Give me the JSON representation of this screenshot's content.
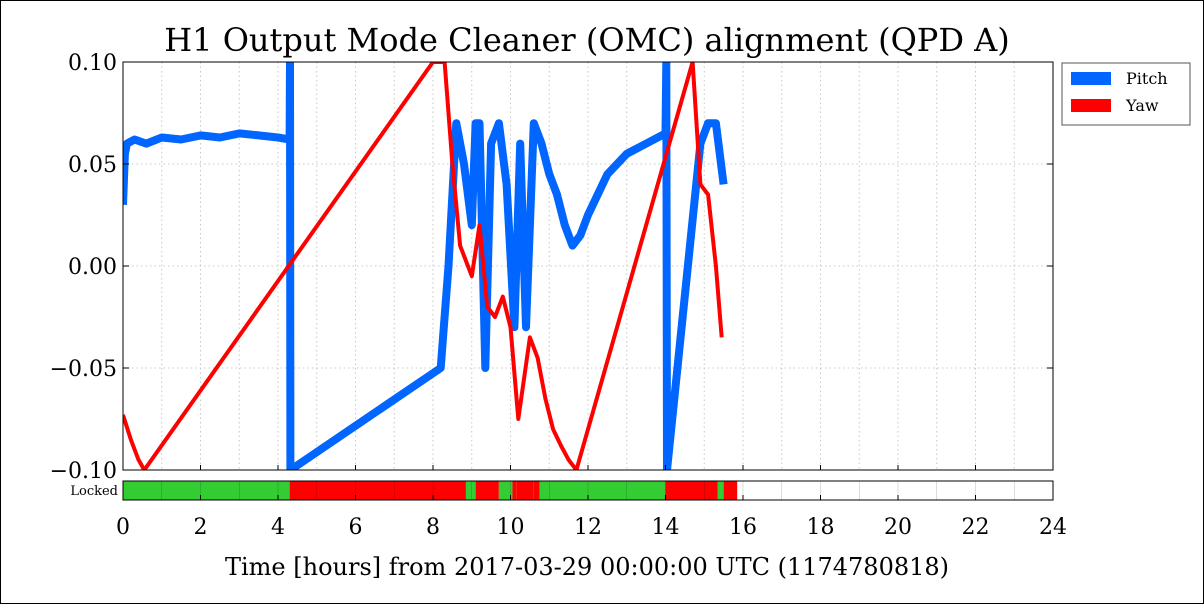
{
  "chart_data": {
    "type": "line",
    "title": "H1 Output Mode Cleaner (OMC) alignment (QPD A)",
    "xlabel": "Time [hours] from 2017-03-29 00:00:00 UTC (1174780818)",
    "ylabel": "",
    "xlim": [
      0,
      24
    ],
    "ylim": [
      -0.1,
      0.1
    ],
    "x_ticks": [
      "0",
      "2",
      "4",
      "6",
      "8",
      "10",
      "12",
      "14",
      "16",
      "18",
      "20",
      "22",
      "24"
    ],
    "y_ticks": [
      "−0.10",
      "−0.05",
      "0.00",
      "0.05",
      "0.10"
    ],
    "y_tick_values": [
      -0.1,
      -0.05,
      0.0,
      0.05,
      0.1
    ],
    "grid": true,
    "legend_position": "outside-right",
    "series": [
      {
        "name": "Pitch",
        "color": "#0066ff",
        "x": [
          0.0,
          0.05,
          0.1,
          0.3,
          0.6,
          1.0,
          1.5,
          2.0,
          2.5,
          3.0,
          3.5,
          4.0,
          4.3,
          4.31,
          4.32,
          8.2,
          8.4,
          8.6,
          8.8,
          9.0,
          9.1,
          9.2,
          9.35,
          9.5,
          9.7,
          9.9,
          10.1,
          10.25,
          10.4,
          10.6,
          10.8,
          11.0,
          11.2,
          11.4,
          11.6,
          11.8,
          12.0,
          12.5,
          13.0,
          13.5,
          14.0,
          14.02,
          14.04,
          14.9,
          15.1,
          15.3,
          15.5
        ],
        "y": [
          0.03,
          0.055,
          0.06,
          0.062,
          0.06,
          0.063,
          0.062,
          0.064,
          0.063,
          0.065,
          0.064,
          0.063,
          0.062,
          0.1,
          -0.1,
          -0.05,
          0.0,
          0.07,
          0.05,
          0.02,
          0.07,
          0.07,
          -0.05,
          0.06,
          0.07,
          0.04,
          -0.03,
          0.06,
          -0.03,
          0.07,
          0.06,
          0.045,
          0.035,
          0.02,
          0.01,
          0.015,
          0.025,
          0.045,
          0.055,
          0.06,
          0.065,
          0.1,
          -0.1,
          0.06,
          0.07,
          0.07,
          0.04
        ]
      },
      {
        "name": "Yaw",
        "color": "#ff0000",
        "x": [
          0.0,
          0.2,
          0.4,
          0.55,
          8.0,
          8.3,
          8.5,
          8.7,
          9.0,
          9.2,
          9.4,
          9.6,
          9.8,
          10.0,
          10.2,
          10.5,
          10.7,
          10.9,
          11.1,
          11.3,
          11.5,
          11.7,
          14.7,
          14.9,
          15.1,
          15.3,
          15.45
        ],
        "y": [
          -0.073,
          -0.085,
          -0.095,
          -0.1,
          0.1,
          0.1,
          0.05,
          0.01,
          -0.005,
          0.02,
          -0.02,
          -0.025,
          -0.015,
          -0.03,
          -0.075,
          -0.035,
          -0.045,
          -0.065,
          -0.08,
          -0.088,
          -0.095,
          -0.1,
          0.1,
          0.04,
          0.035,
          0.0,
          -0.035
        ]
      }
    ],
    "state_bar": {
      "label": "Locked",
      "segments": [
        {
          "start": 0.0,
          "end": 4.3,
          "state": "locked"
        },
        {
          "start": 4.3,
          "end": 8.85,
          "state": "unlocked"
        },
        {
          "start": 8.85,
          "end": 9.1,
          "state": "locked"
        },
        {
          "start": 9.1,
          "end": 9.7,
          "state": "unlocked"
        },
        {
          "start": 9.7,
          "end": 10.05,
          "state": "locked"
        },
        {
          "start": 10.05,
          "end": 10.15,
          "state": "unlocked"
        },
        {
          "start": 10.15,
          "end": 10.6,
          "state": "unlocked"
        },
        {
          "start": 10.6,
          "end": 10.75,
          "state": "unlocked"
        },
        {
          "start": 10.75,
          "end": 14.0,
          "state": "locked"
        },
        {
          "start": 14.0,
          "end": 15.35,
          "state": "unlocked"
        },
        {
          "start": 15.35,
          "end": 15.5,
          "state": "locked"
        },
        {
          "start": 15.5,
          "end": 15.85,
          "state": "unlocked"
        }
      ],
      "colors": {
        "locked": "#33cc33",
        "unlocked": "#ff0000"
      }
    }
  }
}
